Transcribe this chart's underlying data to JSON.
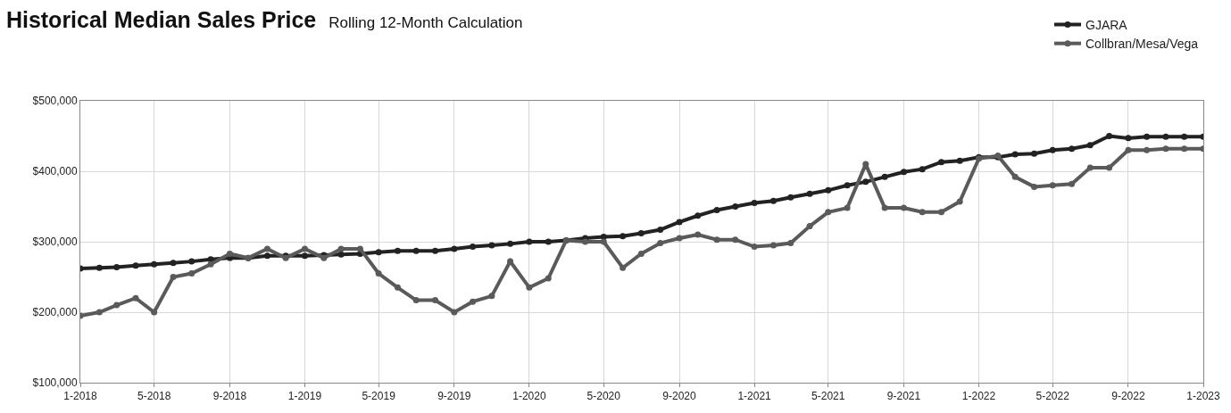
{
  "chart_data": {
    "type": "line",
    "title": "Historical Median Sales Price",
    "subtitle": "Rolling 12-Month Calculation",
    "x": [
      "2018-01",
      "2018-02",
      "2018-03",
      "2018-04",
      "2018-05",
      "2018-06",
      "2018-07",
      "2018-08",
      "2018-09",
      "2018-10",
      "2018-11",
      "2018-12",
      "2019-01",
      "2019-02",
      "2019-03",
      "2019-04",
      "2019-05",
      "2019-06",
      "2019-07",
      "2019-08",
      "2019-09",
      "2019-10",
      "2019-11",
      "2019-12",
      "2020-01",
      "2020-02",
      "2020-03",
      "2020-04",
      "2020-05",
      "2020-06",
      "2020-07",
      "2020-08",
      "2020-09",
      "2020-10",
      "2020-11",
      "2020-12",
      "2021-01",
      "2021-02",
      "2021-03",
      "2021-04",
      "2021-05",
      "2021-06",
      "2021-07",
      "2021-08",
      "2021-09",
      "2021-10",
      "2021-11",
      "2021-12",
      "2022-01",
      "2022-02",
      "2022-03",
      "2022-04",
      "2022-05",
      "2022-06",
      "2022-07",
      "2022-08",
      "2022-09",
      "2022-10",
      "2022-11",
      "2022-12",
      "2023-01"
    ],
    "series": [
      {
        "name": "GJARA",
        "color": "#222222",
        "values": [
          262000,
          263000,
          264000,
          266000,
          268000,
          270000,
          272000,
          275000,
          277000,
          277000,
          280000,
          280000,
          280000,
          281000,
          282000,
          283000,
          285000,
          287000,
          287000,
          287000,
          290000,
          293000,
          295000,
          297000,
          300000,
          300000,
          302000,
          305000,
          307000,
          308000,
          312000,
          317000,
          328000,
          337000,
          345000,
          350000,
          355000,
          358000,
          363000,
          368000,
          373000,
          380000,
          385000,
          392000,
          399000,
          403000,
          413000,
          415000,
          420000,
          420000,
          424000,
          425000,
          430000,
          432000,
          437000,
          450000,
          447000,
          449000,
          449000,
          449000,
          449000
        ]
      },
      {
        "name": "Collbran/Mesa/Vega",
        "color": "#5a5a5a",
        "values": [
          195000,
          200000,
          210000,
          220000,
          200000,
          250000,
          255000,
          268000,
          283000,
          277000,
          290000,
          277000,
          290000,
          277000,
          290000,
          290000,
          255000,
          235000,
          217000,
          217000,
          200000,
          215000,
          223000,
          272000,
          235000,
          248000,
          302000,
          300000,
          300000,
          263000,
          283000,
          298000,
          305000,
          310000,
          303000,
          303000,
          293000,
          295000,
          298000,
          322000,
          342000,
          348000,
          410000,
          348000,
          348000,
          342000,
          342000,
          357000,
          418000,
          422000,
          392000,
          378000,
          380000,
          382000,
          405000,
          405000,
          430000,
          430000,
          432000,
          432000,
          432000
        ]
      }
    ],
    "xlim": [
      "2018-01",
      "2023-01"
    ],
    "xticks": [
      {
        "value": "2018-01",
        "label": "1-2018"
      },
      {
        "value": "2018-05",
        "label": "5-2018"
      },
      {
        "value": "2018-09",
        "label": "9-2018"
      },
      {
        "value": "2019-01",
        "label": "1-2019"
      },
      {
        "value": "2019-05",
        "label": "5-2019"
      },
      {
        "value": "2019-09",
        "label": "9-2019"
      },
      {
        "value": "2020-01",
        "label": "1-2020"
      },
      {
        "value": "2020-05",
        "label": "5-2020"
      },
      {
        "value": "2020-09",
        "label": "9-2020"
      },
      {
        "value": "2021-01",
        "label": "1-2021"
      },
      {
        "value": "2021-05",
        "label": "5-2021"
      },
      {
        "value": "2021-09",
        "label": "9-2021"
      },
      {
        "value": "2022-01",
        "label": "1-2022"
      },
      {
        "value": "2022-05",
        "label": "5-2022"
      },
      {
        "value": "2022-09",
        "label": "9-2022"
      },
      {
        "value": "2023-01",
        "label": "1-2023"
      }
    ],
    "ylim": [
      100000,
      500000
    ],
    "yticks": [
      {
        "value": 100000,
        "label": "$100,000"
      },
      {
        "value": 200000,
        "label": "$200,000"
      },
      {
        "value": 300000,
        "label": "$300,000"
      },
      {
        "value": 400000,
        "label": "$400,000"
      },
      {
        "value": 500000,
        "label": "$500,000"
      }
    ],
    "grid": true,
    "legend": "top right",
    "marker": "circle",
    "line_style": "solid"
  }
}
